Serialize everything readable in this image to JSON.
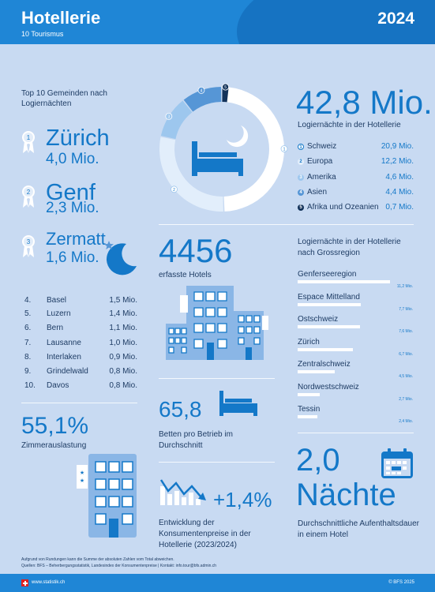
{
  "header": {
    "title": "Hotellerie",
    "subtitle": "10 Tourismus",
    "year": "2024"
  },
  "top10": {
    "label": "Top 10 Gemeinden nach Logiernächten",
    "podium": [
      {
        "rank": "1",
        "name": "Zürich",
        "value": "4,0 Mio."
      },
      {
        "rank": "2",
        "name": "Genf",
        "value": "2,3 Mio."
      },
      {
        "rank": "3",
        "name": "Zermatt",
        "value": "1,6 Mio."
      }
    ],
    "list": [
      {
        "rank": "4.",
        "name": "Basel",
        "value": "1,5 Mio."
      },
      {
        "rank": "5.",
        "name": "Luzern",
        "value": "1,4 Mio."
      },
      {
        "rank": "6.",
        "name": "Bern",
        "value": "1,1 Mio."
      },
      {
        "rank": "7.",
        "name": "Lausanne",
        "value": "1,0 Mio."
      },
      {
        "rank": "8.",
        "name": "Interlaken",
        "value": "0,9 Mio."
      },
      {
        "rank": "9.",
        "name": "Grindelwald",
        "value": "0,8 Mio."
      },
      {
        "rank": "10.",
        "name": "Davos",
        "value": "0,8 Mio."
      }
    ]
  },
  "occupancy": {
    "value": "55,1%",
    "label": "Zimmerauslastung"
  },
  "donut": {
    "markers": [
      "1",
      "2",
      "3",
      "4",
      "5"
    ],
    "segments": [
      {
        "value": 20.9,
        "color": "#ffffff"
      },
      {
        "value": 12.2,
        "color": "#e2eefb"
      },
      {
        "value": 4.6,
        "color": "#9dc7ee"
      },
      {
        "value": 4.4,
        "color": "#5696d6"
      },
      {
        "value": 0.7,
        "color": "#12325a"
      }
    ]
  },
  "nights_total": {
    "value": "42,8 Mio.",
    "label": "Logiernächte in der Hotellerie"
  },
  "origins": [
    {
      "marker": "1",
      "name": "Schweiz",
      "value": "20,9 Mio.",
      "color": "#ffffff"
    },
    {
      "marker": "2",
      "name": "Europa",
      "value": "12,2 Mio.",
      "color": "#e2eefb"
    },
    {
      "marker": "3",
      "name": "Amerika",
      "value": "4,6 Mio.",
      "color": "#9dc7ee"
    },
    {
      "marker": "4",
      "name": "Asien",
      "value": "4,4 Mio.",
      "color": "#5696d6"
    },
    {
      "marker": "5",
      "name": "Afrika und Ozeanien",
      "value": "0,7 Mio.",
      "color": "#12325a"
    }
  ],
  "hotels": {
    "value": "4456",
    "label": "erfasste Hotels"
  },
  "beds": {
    "value": "65,8",
    "label": "Betten pro Betrieb im Durchschnitt"
  },
  "prices": {
    "value": "+1,4%",
    "label": "Entwicklung der Konsumentenpreise in der Hotellerie (2023/2024)"
  },
  "regions": {
    "label": "Logiernächte in der Hotellerie nach Grossregion",
    "items": [
      {
        "name": "Genferseeregion",
        "value": 11.2,
        "display": "11,2 Mio."
      },
      {
        "name": "Espace Mittelland",
        "value": 7.7,
        "display": "7,7 Mio."
      },
      {
        "name": "Ostschweiz",
        "value": 7.6,
        "display": "7,6 Mio."
      },
      {
        "name": "Zürich",
        "value": 6.7,
        "display": "6,7 Mio."
      },
      {
        "name": "Zentralschweiz",
        "value": 4.5,
        "display": "4,5 Mio."
      },
      {
        "name": "Nordwestschweiz",
        "value": 2.7,
        "display": "2,7 Mio."
      },
      {
        "name": "Tessin",
        "value": 2.4,
        "display": "2,4 Mio."
      }
    ]
  },
  "stay": {
    "value": "2,0",
    "unit": "Nächte",
    "label": "Durchschnittliche Aufenthaltsdauer in einem Hotel"
  },
  "footnotes": {
    "line1": "Aufgrund von Rundungen kann die Summe der absoluten Zahlen vom Total abweichen.",
    "line2": "Quellen: BFS – Beherbergungsstatistik, Landesindex der Konsumentenpreise | Kontakt: info.tour@bfs.admin.ch"
  },
  "footer": {
    "url": "www.statistik.ch",
    "copyright": "© BFS 2025"
  },
  "colors": {
    "accent": "#1478c8",
    "header": "#1f86d6",
    "background": "#c8daf2"
  }
}
